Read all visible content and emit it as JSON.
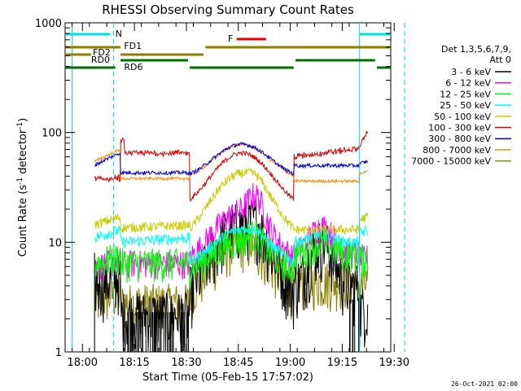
{
  "chart_data": {
    "type": "line",
    "title": "RHESSI Observing Summary Count Rates",
    "xlabel": "Start Time (05-Feb-15 17:57:02)",
    "ylabel_main": "Count Rate (s",
    "ylabel_sup1": "-1",
    "ylabel_mid": " detector",
    "ylabel_sup2": "-1",
    "ylabel_end": ")",
    "yscale": "log",
    "ylim": [
      1,
      1000
    ],
    "xlim_min": [
      -2,
      92
    ],
    "x_ticks": [
      {
        "min": 3,
        "label": "18:00"
      },
      {
        "min": 18,
        "label": "18:15"
      },
      {
        "min": 33,
        "label": "18:30"
      },
      {
        "min": 48,
        "label": "18:45"
      },
      {
        "min": 63,
        "label": "19:00"
      },
      {
        "min": 78,
        "label": "19:15"
      },
      {
        "min": 93,
        "label": "19:30"
      }
    ],
    "y_ticks": [
      {
        "value": 1,
        "label": "1"
      },
      {
        "value": 10,
        "label": "10"
      },
      {
        "value": 100,
        "label": "100"
      },
      {
        "value": 1000,
        "label": "1000"
      }
    ],
    "legend_header": [
      "Det 1,3,5,6,7,9,",
      "Att 0"
    ],
    "series": [
      {
        "name": "3 - 6 keV",
        "color": "#000000"
      },
      {
        "name": "6 - 12 keV",
        "color": "#ff00ff"
      },
      {
        "name": "12 - 25 keV",
        "color": "#00ff00"
      },
      {
        "name": "25 - 50 keV",
        "color": "#00ffff"
      },
      {
        "name": "50 - 100 keV",
        "color": "#cccc00"
      },
      {
        "name": "100 - 300 keV",
        "color": "#e00000"
      },
      {
        "name": "300 - 800 keV",
        "color": "#0000e0"
      },
      {
        "name": "800 - 7000 keV",
        "color": "#ff8c00"
      },
      {
        "name": "7000 - 15000 keV",
        "color": "#8b8000"
      }
    ],
    "flags": [
      {
        "label": "N",
        "color": "#00e0e0"
      },
      {
        "label": "F",
        "color": "#e00000"
      },
      {
        "label": "FD1",
        "color": "#8b8000"
      },
      {
        "label": "FD2",
        "color": "#8b8000"
      },
      {
        "label": "RD0",
        "color": "#007000"
      },
      {
        "label": "RD6",
        "color": "#007000"
      }
    ],
    "timestamp": "26-Oct-2021 02:00"
  }
}
